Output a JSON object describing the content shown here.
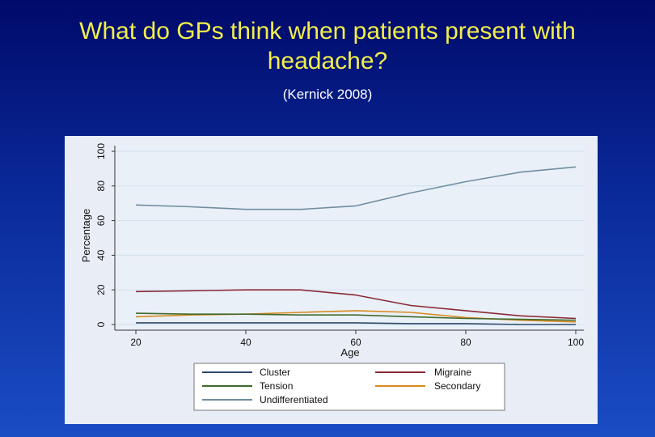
{
  "slide": {
    "title": "What do GPs think when patients present with headache?",
    "subtitle": "(Kernick 2008)"
  },
  "chart_data": {
    "type": "line",
    "xlabel": "Age",
    "ylabel": "Percentage",
    "xlim": [
      20,
      100
    ],
    "ylim": [
      0,
      100
    ],
    "xticks": [
      20,
      40,
      60,
      80,
      100
    ],
    "yticks": [
      0,
      20,
      40,
      60,
      80,
      100
    ],
    "grid": true,
    "legend_position": "bottom",
    "x": [
      20,
      30,
      40,
      50,
      60,
      70,
      80,
      90,
      100
    ],
    "series": [
      {
        "name": "Cluster",
        "color": "#2e4a6a",
        "values": [
          1,
          1,
          1,
          1,
          1,
          0.5,
          0.5,
          0,
          0
        ]
      },
      {
        "name": "Migraine",
        "color": "#8a2a36",
        "values": [
          19,
          19.5,
          20,
          20,
          17,
          11,
          8,
          5,
          3.5
        ]
      },
      {
        "name": "Tension",
        "color": "#3f6a2e",
        "values": [
          6.5,
          6,
          6,
          5.5,
          5.5,
          4.5,
          3.5,
          3,
          2.5
        ]
      },
      {
        "name": "Secondary",
        "color": "#d98a1e",
        "values": [
          4.5,
          5.5,
          6,
          7,
          8,
          7,
          4,
          2.5,
          1.5
        ]
      },
      {
        "name": "Undifferentiated",
        "color": "#6f8ea0",
        "values": [
          69,
          68,
          66.5,
          66.5,
          68.5,
          76,
          82.5,
          88,
          91
        ]
      }
    ]
  }
}
